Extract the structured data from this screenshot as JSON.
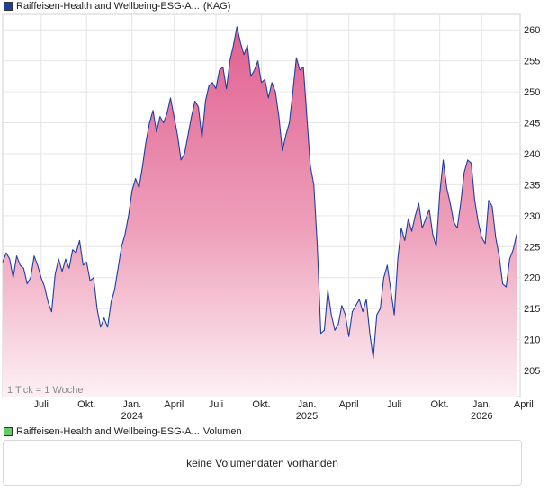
{
  "legend_price": {
    "name": "Raiffeisen-Health and Wellbeing-ESG-A...",
    "suffix": "(KAG)",
    "color": "#1f3f9f"
  },
  "legend_volume": {
    "name": "Raiffeisen-Health and Wellbeing-ESG-A...",
    "suffix": "Volumen",
    "color": "#66cc66"
  },
  "volume_panel": {
    "message": "keine Volumendaten vorhanden"
  },
  "chart_data": {
    "type": "area",
    "title": "Raiffeisen-Health and Wellbeing-ESG-A... (KAG)",
    "tick_note": "1 Tick = 1 Woche",
    "xlim": [
      0,
      148
    ],
    "ylim": [
      200.8,
      262.5
    ],
    "y_ticks": [
      205,
      210,
      215,
      220,
      225,
      230,
      235,
      240,
      245,
      250,
      255,
      260
    ],
    "x_ticks": [
      {
        "x": 11,
        "label": "Juli",
        "year": ""
      },
      {
        "x": 24,
        "label": "Okt.",
        "year": ""
      },
      {
        "x": 37,
        "label": "Jan.",
        "year": "2024"
      },
      {
        "x": 49,
        "label": "April",
        "year": ""
      },
      {
        "x": 61,
        "label": "Juli",
        "year": ""
      },
      {
        "x": 74,
        "label": "Okt.",
        "year": ""
      },
      {
        "x": 87,
        "label": "Jan.",
        "year": "2025"
      },
      {
        "x": 99,
        "label": "April",
        "year": ""
      },
      {
        "x": 112,
        "label": "Juli",
        "year": ""
      },
      {
        "x": 125,
        "label": "Okt.",
        "year": ""
      },
      {
        "x": 137,
        "label": "Jan.",
        "year": "2026"
      },
      {
        "x": 149,
        "label": "April",
        "year": ""
      }
    ],
    "grid": true,
    "series": [
      {
        "name": "Raiffeisen-Health and Wellbeing-ESG-A... (KAG)",
        "color": "#1f3f9f",
        "values": [
          222.5,
          224.0,
          223.0,
          220.0,
          223.5,
          222.0,
          221.5,
          219.0,
          220.0,
          223.5,
          222.0,
          220.0,
          218.5,
          216.0,
          214.5,
          220.5,
          223.0,
          221.0,
          223.0,
          221.5,
          224.5,
          224.0,
          226.0,
          222.0,
          222.5,
          219.5,
          220.0,
          215.0,
          212.0,
          213.5,
          212.0,
          216.0,
          218.0,
          221.5,
          225.0,
          227.0,
          230.0,
          234.0,
          236.0,
          234.5,
          238.0,
          242.0,
          245.0,
          247.0,
          243.5,
          246.0,
          245.0,
          246.5,
          249.0,
          246.0,
          243.0,
          239.0,
          240.0,
          243.0,
          246.0,
          248.5,
          247.5,
          242.5,
          248.5,
          251.0,
          251.5,
          250.5,
          253.5,
          254.0,
          250.5,
          255.0,
          257.5,
          260.5,
          258.0,
          256.0,
          257.5,
          252.5,
          253.5,
          255.0,
          251.5,
          252.0,
          249.0,
          251.5,
          250.0,
          246.0,
          240.5,
          243.0,
          245.0,
          250.0,
          255.5,
          253.5,
          254.0,
          246.0,
          238.0,
          235.0,
          225.0,
          211.0,
          211.5,
          218.0,
          214.0,
          211.5,
          212.5,
          215.5,
          214.0,
          210.5,
          214.5,
          215.5,
          216.5,
          214.5,
          216.5,
          211.0,
          207.0,
          214.0,
          215.0,
          220.0,
          222.0,
          218.0,
          214.0,
          223.0,
          228.0,
          226.0,
          229.5,
          227.5,
          230.0,
          232.0,
          228.0,
          229.5,
          231.0,
          227.0,
          225.0,
          233.5,
          239.0,
          234.5,
          232.0,
          229.0,
          228.0,
          232.0,
          237.0,
          239.0,
          238.5,
          232.5,
          229.0,
          226.5,
          225.5,
          232.5,
          231.5,
          226.5,
          223.5,
          219.0,
          218.5,
          223.0,
          224.5,
          227.0
        ]
      }
    ]
  }
}
